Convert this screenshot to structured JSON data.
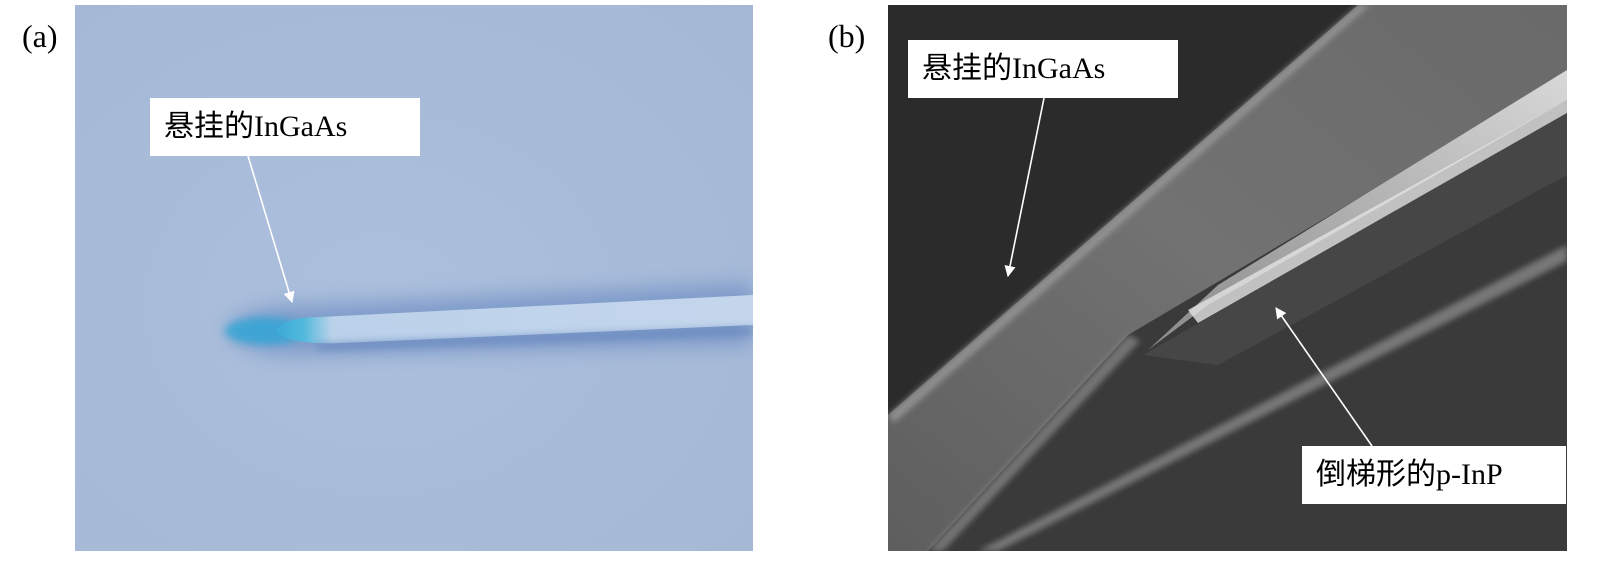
{
  "panels": [
    {
      "label": "(a)",
      "callouts": [
        {
          "text": "悬挂的InGaAs"
        }
      ]
    },
    {
      "label": "(b)",
      "callouts": [
        {
          "text": "悬挂的InGaAs"
        },
        {
          "text": "倒梯形的p-InP"
        }
      ]
    }
  ],
  "colors": {
    "optical_background": "#a8bcda",
    "optical_tip": "#35b3d8",
    "sem_background": "#2a2a2a",
    "sem_structure": "#7c7c7c",
    "callout_background": "#ffffff"
  }
}
